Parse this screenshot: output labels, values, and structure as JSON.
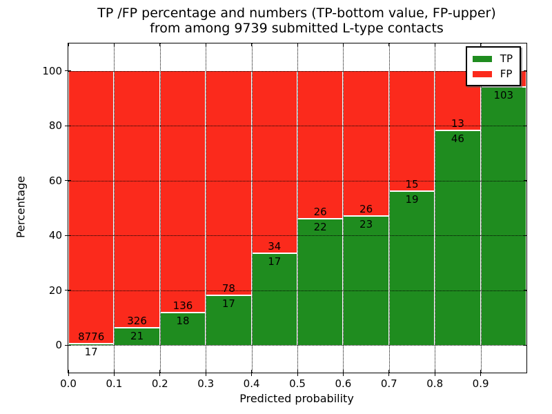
{
  "title": {
    "line1": "TP /FP percentage and numbers (TP-bottom value, FP-upper)",
    "line2": "from among 9739 submitted L-type contacts"
  },
  "axes": {
    "xlabel": "Predicted probability",
    "ylabel": "Percentage",
    "x_tick_labels": [
      "0.0",
      "0.1",
      "0.2",
      "0.3",
      "0.4",
      "0.5",
      "0.6",
      "0.7",
      "0.8",
      "0.9"
    ],
    "x_tick_values": [
      0.0,
      0.1,
      0.2,
      0.3,
      0.4,
      0.5,
      0.6,
      0.7,
      0.8,
      0.9
    ],
    "y_tick_labels": [
      "0",
      "20",
      "40",
      "60",
      "80",
      "100"
    ],
    "y_tick_values": [
      0,
      20,
      40,
      60,
      80,
      100
    ],
    "xlim": [
      0.0,
      1.0
    ],
    "ylim": [
      -10,
      110
    ],
    "grid": "dotted"
  },
  "legend": {
    "position": "upper-right",
    "items": [
      {
        "label": "TP",
        "color": "#1f8c1f"
      },
      {
        "label": "FP",
        "color": "#fb2a1c"
      }
    ]
  },
  "colors": {
    "tp": "#1f8c1f",
    "fp": "#fb2a1c",
    "grid": "#000000",
    "background": "#ffffff"
  },
  "chart_data": {
    "type": "bar",
    "stacked": true,
    "normalized_total": 100,
    "bin_width": 0.1,
    "title": "TP /FP percentage and numbers (TP-bottom value, FP-upper) from among 9739 submitted L-type contacts",
    "xlabel": "Predicted probability",
    "ylabel": "Percentage",
    "categories": [
      "0.0-0.1",
      "0.1-0.2",
      "0.2-0.3",
      "0.3-0.4",
      "0.4-0.5",
      "0.5-0.6",
      "0.6-0.7",
      "0.7-0.8",
      "0.8-0.9",
      "0.9-1.0"
    ],
    "series": [
      {
        "name": "TP",
        "counts": [
          17,
          21,
          18,
          17,
          17,
          22,
          23,
          19,
          46,
          103
        ],
        "percent": [
          0.2,
          6.1,
          11.7,
          17.9,
          33.3,
          45.8,
          46.9,
          55.9,
          78.0,
          94.0
        ]
      },
      {
        "name": "FP",
        "counts": [
          8776,
          326,
          136,
          78,
          34,
          26,
          26,
          15,
          13,
          null
        ],
        "percent": [
          99.8,
          93.9,
          88.3,
          82.1,
          66.7,
          54.2,
          53.1,
          44.1,
          22.0,
          6.0
        ]
      }
    ],
    "note_fp_last_label": "hidden behind legend"
  }
}
